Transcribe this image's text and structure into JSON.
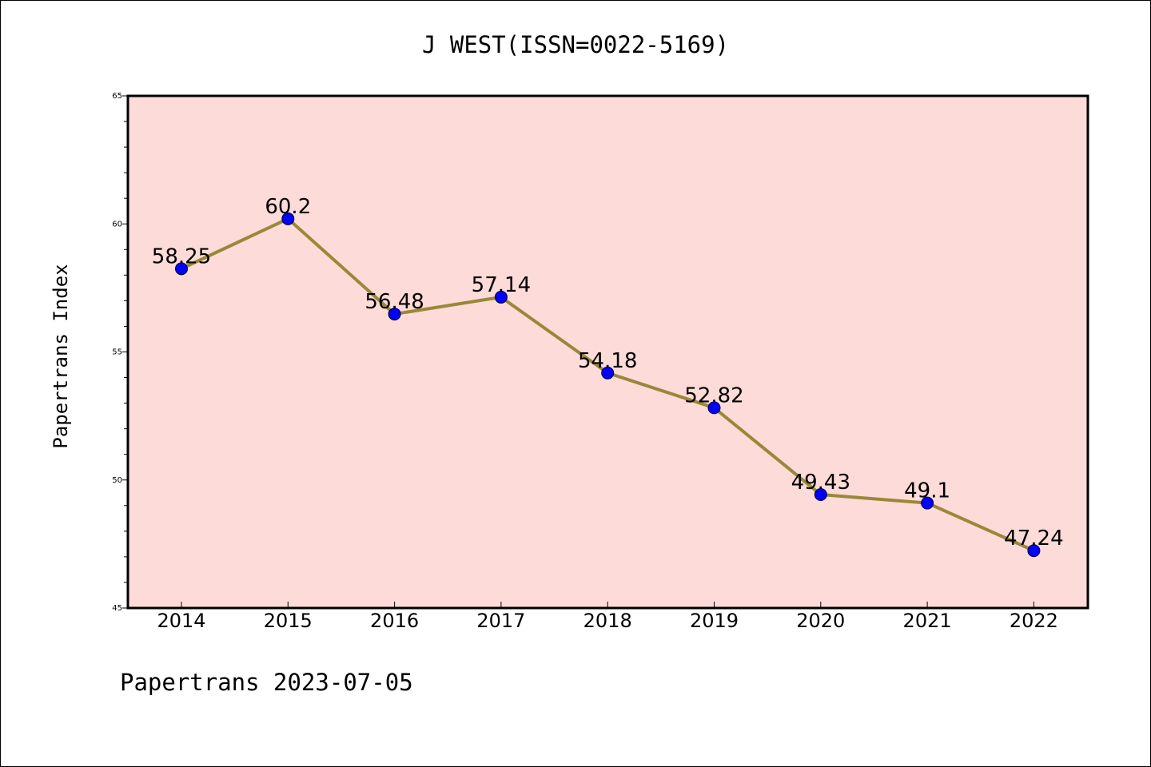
{
  "chart_data": {
    "type": "line",
    "title": "J WEST(ISSN=0022-5169)",
    "ylabel": "Papertrans Index",
    "xlabel": "",
    "footer": "Papertrans 2023-07-05",
    "categories": [
      "2014",
      "2015",
      "2016",
      "2017",
      "2018",
      "2019",
      "2020",
      "2021",
      "2022"
    ],
    "values": [
      58.25,
      60.2,
      56.48,
      57.14,
      54.18,
      52.82,
      49.43,
      49.1,
      47.24
    ],
    "data_labels": [
      "58.25",
      "60.2",
      "56.48",
      "57.14",
      "54.18",
      "52.82",
      "49.43",
      "49.1",
      "47.24"
    ],
    "ylim": [
      45,
      65
    ],
    "yticks": [
      "45",
      "50",
      "55",
      "60",
      "65"
    ],
    "grid": false,
    "colors": {
      "plot_background": "#fddbd8",
      "line": "#998838",
      "marker": "#0000ff"
    }
  }
}
